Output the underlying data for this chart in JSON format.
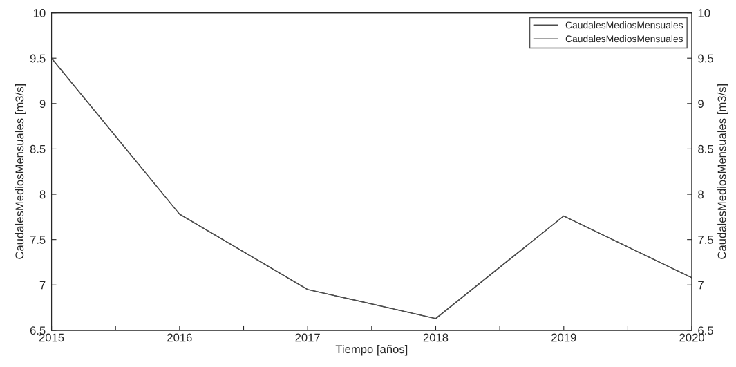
{
  "chart_data": {
    "type": "line",
    "xlabel": "Tiempo [años]",
    "ylabel": "CaudalesMediosMensuales [m3/s]",
    "y2label": "CaudalesMediosMensuales [m3/s]",
    "x": [
      2015,
      2016,
      2017,
      2018,
      2019,
      2020
    ],
    "series": [
      {
        "name": "CaudalesMediosMensuales",
        "color": "#4d4d4d",
        "values": [
          9.5,
          7.78,
          6.95,
          6.63,
          7.76,
          7.08
        ]
      },
      {
        "name": "CaudalesMediosMensuales",
        "color": "#4d4d4d",
        "axis": "y2",
        "values": [
          9.5,
          7.78,
          6.95,
          6.63,
          7.76,
          7.08
        ]
      }
    ],
    "xlim": [
      2015,
      2020
    ],
    "xticks": [
      2015,
      {
        "value": 2015.5,
        "label": null
      },
      2016,
      {
        "value": 2016.5,
        "label": null
      },
      2017,
      {
        "value": 2017.5,
        "label": null
      },
      2018,
      {
        "value": 2018.5,
        "label": null
      },
      2019,
      {
        "value": 2019.5,
        "label": null
      },
      2020
    ],
    "ylim": [
      6.5,
      10
    ],
    "yticks": [
      6.5,
      7,
      7.5,
      8,
      8.5,
      9,
      9.5,
      10
    ],
    "y2lim": [
      6.5,
      10
    ],
    "y2ticks": [
      6.5,
      7,
      7.5,
      8,
      8.5,
      9,
      9.5,
      10
    ],
    "grid": false,
    "legend": "top right",
    "marker": "none",
    "line_style": "solid"
  }
}
